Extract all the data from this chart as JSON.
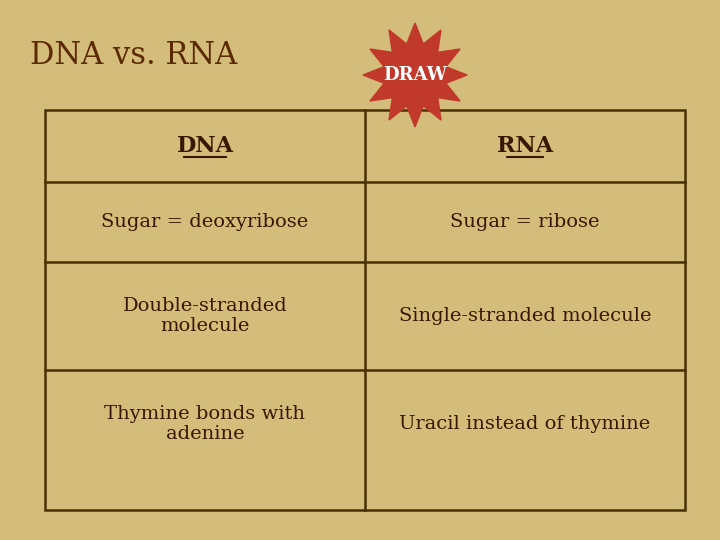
{
  "title": "DNA vs. RNA",
  "title_color": "#5C2A00",
  "title_fontsize": 22,
  "draw_label": "DRAW",
  "draw_bg_color": "#C0392B",
  "draw_text_color": "#FFFFFF",
  "background_color": "#D4BC7A",
  "table_bg_color": "#D4BC7A",
  "table_border_color": "#4A3000",
  "header_row": [
    "DNA",
    "RNA"
  ],
  "rows": [
    [
      "Sugar = deoxyribose",
      "Sugar = ribose"
    ],
    [
      "Double-stranded\nmolecule",
      "Single-stranded molecule"
    ],
    [
      "Thymine bonds with\nadenine",
      "Uracil instead of thymine"
    ]
  ],
  "cell_text_color": "#3A1800",
  "cell_fontsize": 14,
  "header_fontsize": 16
}
